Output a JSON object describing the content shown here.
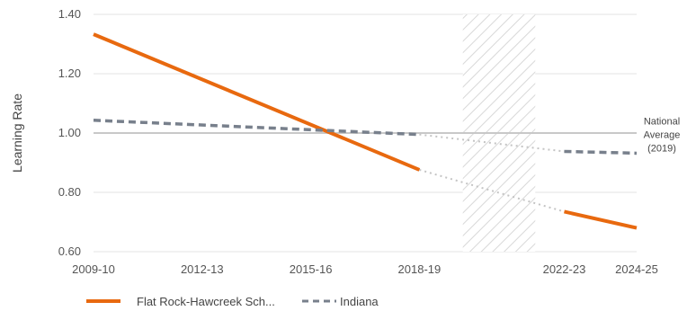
{
  "chart_data": {
    "type": "line",
    "ylabel": "Learning Rate",
    "ylim": [
      0.6,
      1.4
    ],
    "y_ticks": [
      "1.40",
      "1.20",
      "1.00",
      "0.80",
      "0.60"
    ],
    "x_ticks": [
      {
        "label": "2009-10",
        "year": 2009
      },
      {
        "label": "2012-13",
        "year": 2012
      },
      {
        "label": "2015-16",
        "year": 2015
      },
      {
        "label": "2018-19",
        "year": 2018
      },
      {
        "label": "2022-23",
        "year": 2022
      },
      {
        "label": "2024-25",
        "year": 2024
      }
    ],
    "xlim": [
      2009,
      2024
    ],
    "gap_band": [
      2019.2,
      2021.2
    ],
    "reference_line": {
      "value": 1.0,
      "label_lines": [
        "National",
        "Average",
        "(2019)"
      ]
    },
    "series": [
      {
        "name": "Flat Rock-Hawcreek Sch...",
        "color": "#e8690f",
        "style": "solid",
        "solid_segments": [
          [
            [
              2009,
              1.333
            ],
            [
              2018,
              0.876
            ]
          ],
          [
            [
              2022,
              0.735
            ],
            [
              2024,
              0.68
            ]
          ]
        ],
        "dotted_bridge": [
          [
            2018,
            0.876
          ],
          [
            2022,
            0.735
          ]
        ]
      },
      {
        "name": "Indiana",
        "color": "#78808c",
        "style": "dashed",
        "solid_segments": [
          [
            [
              2009,
              1.043
            ],
            [
              2018,
              0.995
            ]
          ],
          [
            [
              2022,
              0.938
            ],
            [
              2024,
              0.932
            ]
          ]
        ],
        "dotted_bridge": [
          [
            2018,
            0.995
          ],
          [
            2022,
            0.938
          ]
        ]
      }
    ],
    "legend": "bottom"
  }
}
